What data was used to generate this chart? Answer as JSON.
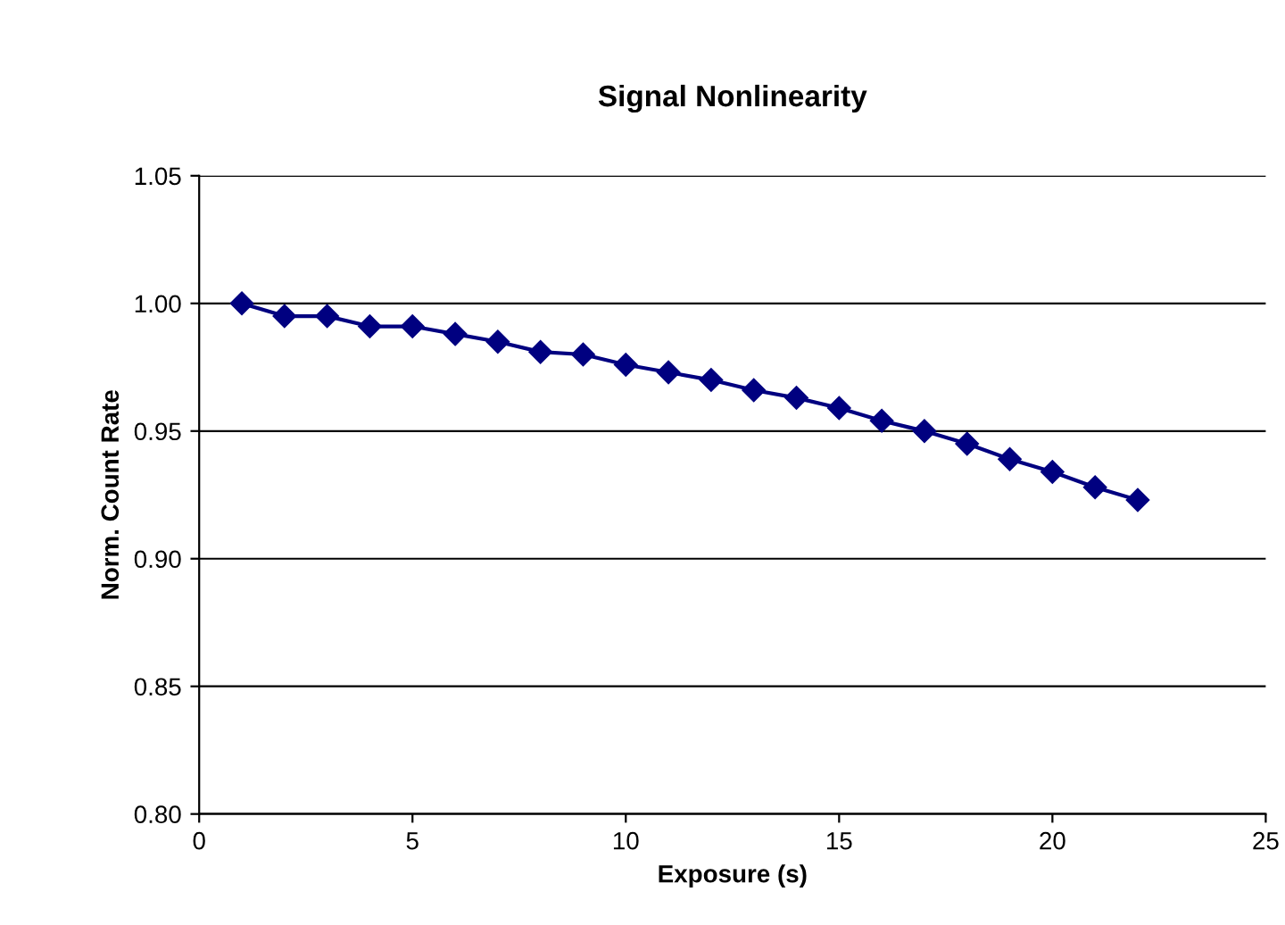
{
  "chart_data": {
    "type": "line",
    "title": "Signal Nonlinearity",
    "xlabel": "Exposure (s)",
    "ylabel": "Norm. Count Rate",
    "x": [
      1,
      2,
      3,
      4,
      5,
      6,
      7,
      8,
      9,
      10,
      11,
      12,
      13,
      14,
      15,
      16,
      17,
      18,
      19,
      20,
      21,
      22
    ],
    "series": [
      {
        "color": "#000080",
        "values": [
          1.0,
          0.995,
          0.995,
          0.991,
          0.991,
          0.988,
          0.985,
          0.981,
          0.98,
          0.976,
          0.973,
          0.97,
          0.966,
          0.963,
          0.959,
          0.954,
          0.95,
          0.945,
          0.939,
          0.934,
          0.928,
          0.923
        ]
      }
    ],
    "xlim": [
      0,
      25
    ],
    "xticks": [
      0,
      5,
      10,
      15,
      20,
      25
    ],
    "ylim": [
      0.8,
      1.05
    ],
    "yticks": [
      {
        "value": 0.8,
        "label": "0.80"
      },
      {
        "value": 0.85,
        "label": "0.85"
      },
      {
        "value": 0.9,
        "label": "0.90"
      },
      {
        "value": 0.95,
        "label": "0.95"
      },
      {
        "value": 1.0,
        "label": "1.00"
      },
      {
        "value": 1.05,
        "label": "1.05"
      }
    ],
    "grid": "y",
    "marker": "diamond",
    "line_style": "solid"
  }
}
